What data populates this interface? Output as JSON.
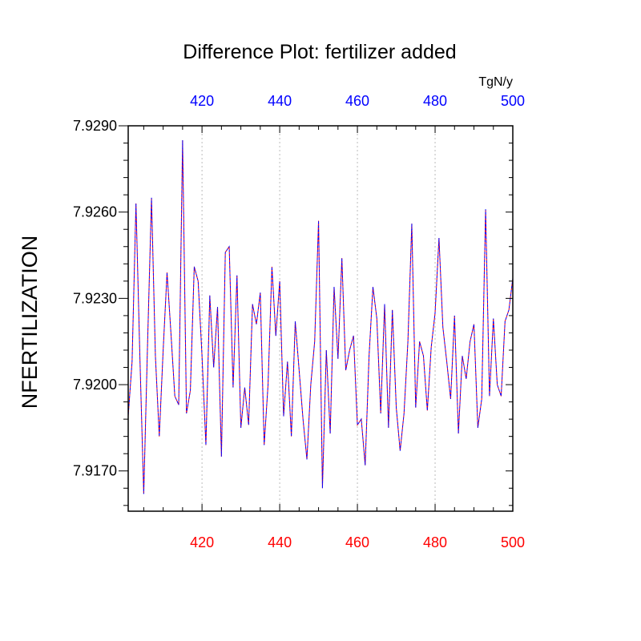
{
  "colors": {
    "bottom_axis": "#ff0000",
    "top_axis": "#0000ff",
    "series_a": "#ff0000",
    "series_b": "#0000ff",
    "grid": "#bbbbbb",
    "frame": "#000000"
  },
  "chart_data": {
    "type": "line",
    "title": "Difference Plot: fertilizer added",
    "ylabel": "NFERTILIZATION",
    "top_axis_label": "TgN/y",
    "xlim": [
      401,
      500
    ],
    "ylim": [
      7.9156,
      7.929
    ],
    "xticks": [
      420,
      440,
      460,
      480,
      500
    ],
    "xtick_labels": [
      "420",
      "440",
      "460",
      "480",
      "500"
    ],
    "top_xtick_labels": [
      "420",
      "440",
      "460",
      "480",
      "500"
    ],
    "yticks": [
      7.917,
      7.92,
      7.923,
      7.926,
      7.929
    ],
    "ytick_labels": [
      "7.9170",
      "7.9200",
      "7.9230",
      "7.9260",
      "7.9290"
    ],
    "vertical_grid": true,
    "series": [
      {
        "line_style": "dashed",
        "x": [
          401,
          402,
          403,
          404,
          405,
          406,
          407,
          408,
          409,
          410,
          411,
          412,
          413,
          414,
          415,
          416,
          417,
          418,
          419,
          420,
          421,
          422,
          423,
          424,
          425,
          426,
          427,
          428,
          429,
          430,
          431,
          432,
          433,
          434,
          435,
          436,
          437,
          438,
          439,
          440,
          441,
          442,
          443,
          444,
          445,
          446,
          447,
          448,
          449,
          450,
          451,
          452,
          453,
          454,
          455,
          456,
          457,
          458,
          459,
          460,
          461,
          462,
          463,
          464,
          465,
          466,
          467,
          468,
          469,
          470,
          471,
          472,
          473,
          474,
          475,
          476,
          477,
          478,
          479,
          480,
          481,
          482,
          483,
          484,
          485,
          486,
          487,
          488,
          489,
          490,
          491,
          492,
          493,
          494,
          495,
          496,
          497,
          498,
          499,
          500
        ],
        "y": [
          7.9189,
          7.9208,
          7.9263,
          7.921,
          7.9162,
          7.9215,
          7.9265,
          7.921,
          7.9182,
          7.9212,
          7.9239,
          7.9218,
          7.9196,
          7.9193,
          7.9285,
          7.919,
          7.9198,
          7.9241,
          7.9236,
          7.921,
          7.9179,
          7.9231,
          7.9206,
          7.9227,
          7.9175,
          7.9246,
          7.9248,
          7.9199,
          7.9238,
          7.9185,
          7.9199,
          7.9186,
          7.9228,
          7.9221,
          7.9232,
          7.9179,
          7.92,
          7.9241,
          7.9217,
          7.9236,
          7.9189,
          7.9208,
          7.9182,
          7.9222,
          7.9205,
          7.9188,
          7.9174,
          7.92,
          7.9215,
          7.9257,
          7.9164,
          7.9212,
          7.9183,
          7.9234,
          7.9209,
          7.9244,
          7.9205,
          7.9212,
          7.9217,
          7.9186,
          7.9188,
          7.9172,
          7.921,
          7.9234,
          7.9223,
          7.919,
          7.9228,
          7.9185,
          7.9226,
          7.9192,
          7.9177,
          7.919,
          7.9215,
          7.9256,
          7.9192,
          7.9215,
          7.921,
          7.9191,
          7.9213,
          7.9225,
          7.9251,
          7.922,
          7.9208,
          7.9195,
          7.9224,
          7.9183,
          7.921,
          7.9202,
          7.9215,
          7.9221,
          7.9185,
          7.9195,
          7.9261,
          7.9196,
          7.9223,
          7.92,
          7.9196,
          7.9222,
          7.9226,
          7.9237
        ]
      }
    ]
  }
}
